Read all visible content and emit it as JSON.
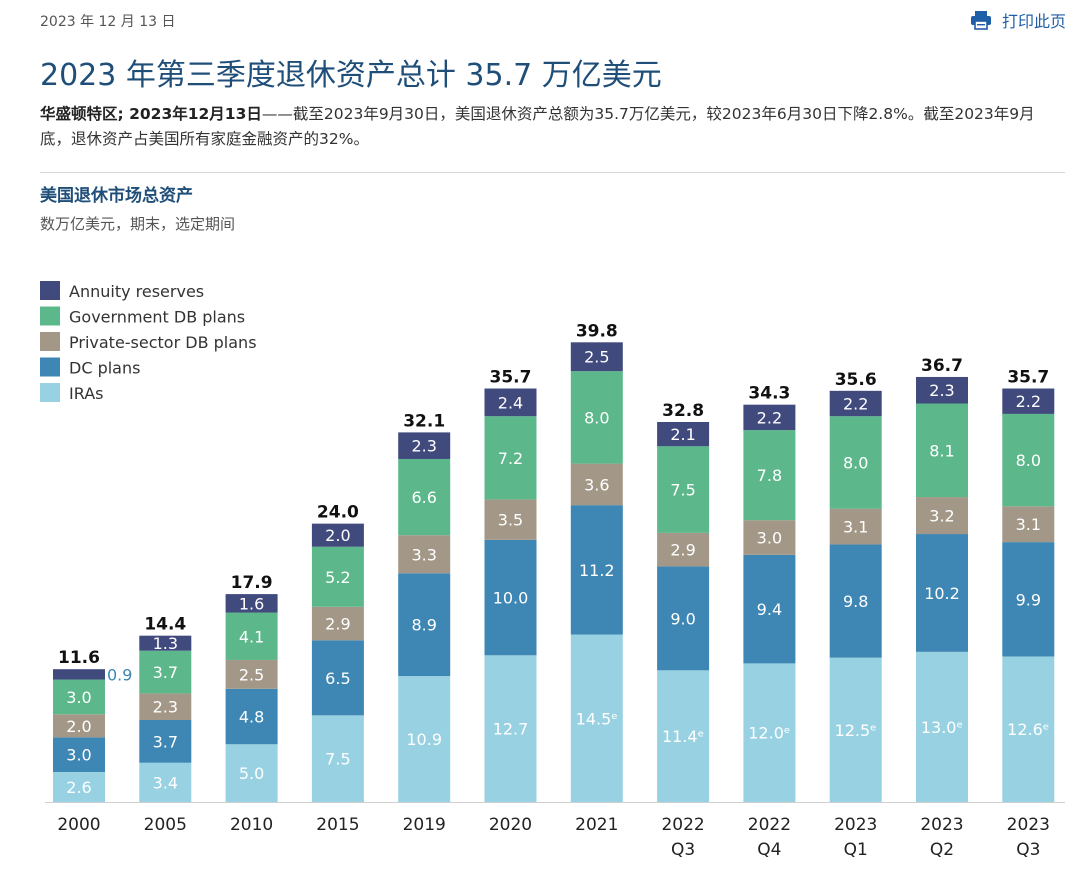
{
  "header": {
    "date": "2023 年 12 月 13 日",
    "print_label": "打印此页",
    "print_icon": "printer-icon"
  },
  "article": {
    "title": "2023 年第三季度退休资产总计 35.7 万亿美元",
    "dateline": "华盛顿特区; 2023年12月13日",
    "body": "——截至2023年9月30日，美国退休资产总额为35.7万亿美元，较2023年6月30日下降2.8%。截至2023年9月底，退休资产占美国所有家庭金融资产的32%。"
  },
  "chart_heading": {
    "title": "美国退休市场总资产",
    "subtitle": "数万亿美元，期末，选定期间"
  },
  "colors": {
    "annuity": "#404a7d",
    "gov_db": "#5cb88b",
    "priv_db": "#a39887",
    "dc": "#3e86b3",
    "ira": "#98d2e2",
    "title": "#1f4e79"
  },
  "chart_data": {
    "type": "bar",
    "stacked": true,
    "units": "trillions of dollars",
    "categories": [
      [
        "2000"
      ],
      [
        "2005"
      ],
      [
        "2010"
      ],
      [
        "2015"
      ],
      [
        "2019"
      ],
      [
        "2020"
      ],
      [
        "2021"
      ],
      [
        "2022",
        "Q3"
      ],
      [
        "2022",
        "Q4"
      ],
      [
        "2023",
        "Q1"
      ],
      [
        "2023",
        "Q2"
      ],
      [
        "2023",
        "Q3"
      ]
    ],
    "series": [
      {
        "name": "IRAs",
        "color_key": "ira",
        "values": [
          2.6,
          3.4,
          5.0,
          7.5,
          10.9,
          12.7,
          14.5,
          11.4,
          12.0,
          12.5,
          13.0,
          12.6
        ],
        "labels": [
          "2.6",
          "3.4",
          "5.0",
          "7.5",
          "10.9",
          "12.7",
          "14.5ᵉ",
          "11.4ᵉ",
          "12.0ᵉ",
          "12.5ᵉ",
          "13.0ᵉ",
          "12.6ᵉ"
        ]
      },
      {
        "name": "DC plans",
        "color_key": "dc",
        "values": [
          3.0,
          3.7,
          4.8,
          6.5,
          8.9,
          10.0,
          11.2,
          9.0,
          9.4,
          9.8,
          10.2,
          9.9
        ],
        "labels": [
          "3.0",
          "3.7",
          "4.8",
          "6.5",
          "8.9",
          "10.0",
          "11.2",
          "9.0",
          "9.4",
          "9.8",
          "10.2",
          "9.9"
        ]
      },
      {
        "name": "Private-sector DB plans",
        "color_key": "priv_db",
        "values": [
          2.0,
          2.3,
          2.5,
          2.9,
          3.3,
          3.5,
          3.6,
          2.9,
          3.0,
          3.1,
          3.2,
          3.1
        ],
        "labels": [
          "2.0",
          "2.3",
          "2.5",
          "2.9",
          "3.3",
          "3.5",
          "3.6",
          "2.9",
          "3.0",
          "3.1",
          "3.2",
          "3.1"
        ]
      },
      {
        "name": "Government DB plans",
        "color_key": "gov_db",
        "values": [
          3.0,
          3.7,
          4.1,
          5.2,
          6.6,
          7.2,
          8.0,
          7.5,
          7.8,
          8.0,
          8.1,
          8.0
        ],
        "labels": [
          "3.0",
          "3.7",
          "4.1",
          "5.2",
          "6.6",
          "7.2",
          "8.0",
          "7.5",
          "7.8",
          "8.0",
          "8.1",
          "8.0"
        ]
      },
      {
        "name": "Annuity reserves",
        "color_key": "annuity",
        "values": [
          0.9,
          1.3,
          1.6,
          2.0,
          2.3,
          2.4,
          2.5,
          2.1,
          2.2,
          2.2,
          2.3,
          2.2
        ],
        "labels": [
          "0.9",
          "1.3",
          "1.6",
          "2.0",
          "2.3",
          "2.4",
          "2.5",
          "2.1",
          "2.2",
          "2.2",
          "2.3",
          "2.2"
        ]
      }
    ],
    "totals": [
      "11.6",
      "14.4",
      "17.9",
      "24.0",
      "32.1",
      "35.7",
      "39.8",
      "32.8",
      "34.3",
      "35.6",
      "36.7",
      "35.7"
    ],
    "legend": [
      "Annuity reserves",
      "Government DB plans",
      "Private-sector DB plans",
      "DC plans",
      "IRAs"
    ],
    "legend_position": "top-left",
    "ylim": [
      0,
      40
    ]
  }
}
